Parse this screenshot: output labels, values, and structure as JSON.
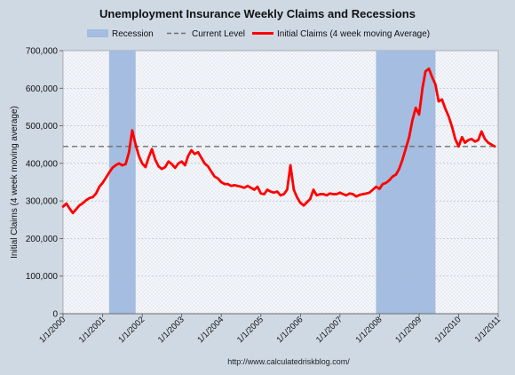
{
  "chart_data": {
    "type": "line",
    "title": "Unemployment Insurance Weekly Claims and Recessions",
    "ylabel": "Initial Claims (4 week moving average)",
    "xlabel": "",
    "source_text": "http://www.calculatedriskblog.com/",
    "ylim": [
      0,
      700000
    ],
    "xlim": [
      "2000-01-01",
      "2011-01-01"
    ],
    "grid": true,
    "legend_position": "top",
    "y_ticks": [
      {
        "value": 0,
        "label": "0"
      },
      {
        "value": 100000,
        "label": "100,000"
      },
      {
        "value": 200000,
        "label": "200,000"
      },
      {
        "value": 300000,
        "label": "300,000"
      },
      {
        "value": 400000,
        "label": "400,000"
      },
      {
        "value": 500000,
        "label": "500,000"
      },
      {
        "value": 600000,
        "label": "600,000"
      },
      {
        "value": 700000,
        "label": "700,000"
      }
    ],
    "x_ticks": [
      {
        "value": "2000-01-01",
        "label": "1/1/2000"
      },
      {
        "value": "2001-01-01",
        "label": "1/1/2001"
      },
      {
        "value": "2002-01-01",
        "label": "1/1/2002"
      },
      {
        "value": "2003-01-01",
        "label": "1/1/2003"
      },
      {
        "value": "2004-01-01",
        "label": "1/1/2004"
      },
      {
        "value": "2005-01-01",
        "label": "1/1/2005"
      },
      {
        "value": "2006-01-01",
        "label": "1/1/2006"
      },
      {
        "value": "2007-01-01",
        "label": "1/1/2007"
      },
      {
        "value": "2008-01-01",
        "label": "1/1/2008"
      },
      {
        "value": "2009-01-01",
        "label": "1/1/2009"
      },
      {
        "value": "2010-01-01",
        "label": "1/1/2010"
      },
      {
        "value": "2011-01-01",
        "label": "1/1/2011"
      }
    ],
    "recessions": {
      "name": "Recession",
      "color": "#a4bde0",
      "periods": [
        {
          "start": "2001-03-01",
          "end": "2001-11-01"
        },
        {
          "start": "2007-12-01",
          "end": "2009-06-01"
        }
      ]
    },
    "current_level": {
      "name": "Current Level",
      "value": 445000,
      "color": "#6e6e6e"
    },
    "series": [
      {
        "name": "Initial Claims (4 week moving Average)",
        "color": "#ff0000",
        "points": [
          [
            "2000-01-01",
            285000
          ],
          [
            "2000-02-01",
            293000
          ],
          [
            "2000-03-01",
            280000
          ],
          [
            "2000-04-01",
            268000
          ],
          [
            "2000-05-01",
            278000
          ],
          [
            "2000-06-01",
            288000
          ],
          [
            "2000-07-01",
            294000
          ],
          [
            "2000-08-01",
            302000
          ],
          [
            "2000-09-01",
            308000
          ],
          [
            "2000-10-01",
            310000
          ],
          [
            "2000-11-01",
            320000
          ],
          [
            "2000-12-01",
            338000
          ],
          [
            "2001-01-01",
            348000
          ],
          [
            "2001-02-01",
            362000
          ],
          [
            "2001-03-01",
            375000
          ],
          [
            "2001-04-01",
            388000
          ],
          [
            "2001-05-01",
            395000
          ],
          [
            "2001-06-01",
            400000
          ],
          [
            "2001-07-01",
            395000
          ],
          [
            "2001-08-01",
            398000
          ],
          [
            "2001-09-01",
            430000
          ],
          [
            "2001-10-01",
            488000
          ],
          [
            "2001-11-01",
            450000
          ],
          [
            "2001-12-01",
            420000
          ],
          [
            "2002-01-01",
            400000
          ],
          [
            "2002-02-01",
            390000
          ],
          [
            "2002-03-01",
            415000
          ],
          [
            "2002-04-01",
            438000
          ],
          [
            "2002-05-01",
            410000
          ],
          [
            "2002-06-01",
            392000
          ],
          [
            "2002-07-01",
            385000
          ],
          [
            "2002-08-01",
            390000
          ],
          [
            "2002-09-01",
            405000
          ],
          [
            "2002-10-01",
            398000
          ],
          [
            "2002-11-01",
            388000
          ],
          [
            "2002-12-01",
            400000
          ],
          [
            "2003-01-01",
            405000
          ],
          [
            "2003-02-01",
            395000
          ],
          [
            "2003-03-01",
            420000
          ],
          [
            "2003-04-01",
            435000
          ],
          [
            "2003-05-01",
            425000
          ],
          [
            "2003-06-01",
            430000
          ],
          [
            "2003-07-01",
            415000
          ],
          [
            "2003-08-01",
            400000
          ],
          [
            "2003-09-01",
            392000
          ],
          [
            "2003-10-01",
            378000
          ],
          [
            "2003-11-01",
            365000
          ],
          [
            "2003-12-01",
            360000
          ],
          [
            "2004-01-01",
            350000
          ],
          [
            "2004-02-01",
            345000
          ],
          [
            "2004-03-01",
            345000
          ],
          [
            "2004-04-01",
            340000
          ],
          [
            "2004-05-01",
            342000
          ],
          [
            "2004-06-01",
            340000
          ],
          [
            "2004-07-01",
            338000
          ],
          [
            "2004-08-01",
            335000
          ],
          [
            "2004-09-01",
            340000
          ],
          [
            "2004-10-01",
            335000
          ],
          [
            "2004-11-01",
            330000
          ],
          [
            "2004-12-01",
            338000
          ],
          [
            "2005-01-01",
            320000
          ],
          [
            "2005-02-01",
            318000
          ],
          [
            "2005-03-01",
            330000
          ],
          [
            "2005-04-01",
            325000
          ],
          [
            "2005-05-01",
            322000
          ],
          [
            "2005-06-01",
            325000
          ],
          [
            "2005-07-01",
            315000
          ],
          [
            "2005-08-01",
            318000
          ],
          [
            "2005-09-01",
            330000
          ],
          [
            "2005-10-01",
            395000
          ],
          [
            "2005-11-01",
            330000
          ],
          [
            "2005-12-01",
            310000
          ],
          [
            "2006-01-01",
            295000
          ],
          [
            "2006-02-01",
            288000
          ],
          [
            "2006-03-01",
            296000
          ],
          [
            "2006-04-01",
            305000
          ],
          [
            "2006-05-01",
            330000
          ],
          [
            "2006-06-01",
            315000
          ],
          [
            "2006-07-01",
            318000
          ],
          [
            "2006-08-01",
            318000
          ],
          [
            "2006-09-01",
            315000
          ],
          [
            "2006-10-01",
            320000
          ],
          [
            "2006-11-01",
            318000
          ],
          [
            "2006-12-01",
            318000
          ],
          [
            "2007-01-01",
            322000
          ],
          [
            "2007-02-01",
            318000
          ],
          [
            "2007-03-01",
            315000
          ],
          [
            "2007-04-01",
            320000
          ],
          [
            "2007-05-01",
            318000
          ],
          [
            "2007-06-01",
            312000
          ],
          [
            "2007-07-01",
            316000
          ],
          [
            "2007-08-01",
            318000
          ],
          [
            "2007-09-01",
            320000
          ],
          [
            "2007-10-01",
            322000
          ],
          [
            "2007-11-01",
            330000
          ],
          [
            "2007-12-01",
            338000
          ],
          [
            "2008-01-01",
            332000
          ],
          [
            "2008-02-01",
            345000
          ],
          [
            "2008-03-01",
            348000
          ],
          [
            "2008-04-01",
            355000
          ],
          [
            "2008-05-01",
            365000
          ],
          [
            "2008-06-01",
            370000
          ],
          [
            "2008-07-01",
            385000
          ],
          [
            "2008-08-01",
            410000
          ],
          [
            "2008-09-01",
            440000
          ],
          [
            "2008-10-01",
            470000
          ],
          [
            "2008-11-01",
            515000
          ],
          [
            "2008-12-01",
            548000
          ],
          [
            "2009-01-01",
            530000
          ],
          [
            "2009-02-01",
            600000
          ],
          [
            "2009-03-01",
            645000
          ],
          [
            "2009-04-01",
            652000
          ],
          [
            "2009-05-01",
            630000
          ],
          [
            "2009-06-01",
            610000
          ],
          [
            "2009-07-01",
            565000
          ],
          [
            "2009-08-01",
            570000
          ],
          [
            "2009-09-01",
            545000
          ],
          [
            "2009-10-01",
            525000
          ],
          [
            "2009-11-01",
            498000
          ],
          [
            "2009-12-01",
            465000
          ],
          [
            "2010-01-01",
            445000
          ],
          [
            "2010-02-01",
            470000
          ],
          [
            "2010-03-01",
            455000
          ],
          [
            "2010-04-01",
            462000
          ],
          [
            "2010-05-01",
            465000
          ],
          [
            "2010-06-01",
            458000
          ],
          [
            "2010-07-01",
            462000
          ],
          [
            "2010-08-01",
            485000
          ],
          [
            "2010-09-01",
            465000
          ],
          [
            "2010-10-01",
            455000
          ],
          [
            "2010-11-01",
            450000
          ],
          [
            "2010-12-01",
            445000
          ]
        ]
      }
    ]
  }
}
